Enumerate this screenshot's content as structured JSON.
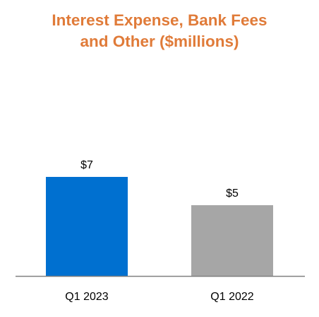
{
  "chart_data": {
    "type": "bar",
    "title_lines": [
      "Interest Expense, Bank Fees",
      "and Other ($millions)"
    ],
    "categories": [
      "Q1 2023",
      "Q1 2022"
    ],
    "values": [
      7,
      5
    ],
    "data_labels": [
      "$7",
      "$5"
    ],
    "colors": [
      "#0070D0",
      "#A6A6A6"
    ],
    "ylim": [
      0,
      7.7
    ],
    "grid": false,
    "legend": "none"
  }
}
